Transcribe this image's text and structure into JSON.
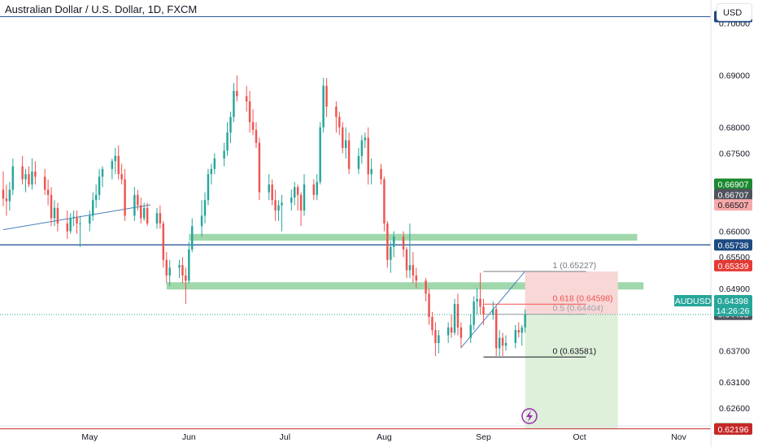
{
  "header": {
    "title": "Australian Dollar / U.S. Dollar, 1D, FXCM",
    "currency_button": "USD"
  },
  "symbol_label": {
    "symbol": "AUDUSD",
    "price": "0.64398",
    "countdown": "14:26:26",
    "color": "#26a69a"
  },
  "chart_data": {
    "type": "candlestick",
    "title": "Australian Dollar / U.S. Dollar, 1D, FXCM",
    "xlim": [
      "2023-04-04",
      "2023-11-10"
    ],
    "ylim": [
      0.6185,
      0.7045
    ],
    "x_ticks": [
      {
        "date": "2023-05-01",
        "label": "May"
      },
      {
        "date": "2023-06-01",
        "label": "Jun"
      },
      {
        "date": "2023-07-01",
        "label": "Jul"
      },
      {
        "date": "2023-08-01",
        "label": "Aug"
      },
      {
        "date": "2023-09-01",
        "label": "Sep"
      },
      {
        "date": "2023-10-01",
        "label": "Oct"
      },
      {
        "date": "2023-11-01",
        "label": "Nov"
      }
    ],
    "y_ticks": [
      "0.69000",
      "0.68000",
      "0.67500",
      "0.66000",
      "0.64900",
      "0.63700",
      "0.63100",
      "0.62600"
    ],
    "colors": {
      "up": "#26a69a",
      "down": "#ef5350"
    },
    "candles": [
      {
        "date": "2023-04-04",
        "o": 0.668,
        "h": 0.6715,
        "l": 0.6648,
        "c": 0.6663
      },
      {
        "date": "2023-04-05",
        "o": 0.6663,
        "h": 0.669,
        "l": 0.663,
        "c": 0.6658
      },
      {
        "date": "2023-04-06",
        "o": 0.6658,
        "h": 0.6695,
        "l": 0.664,
        "c": 0.668
      },
      {
        "date": "2023-04-07",
        "o": 0.668,
        "h": 0.674,
        "l": 0.667,
        "c": 0.6725
      },
      {
        "date": "2023-04-10",
        "o": 0.6725,
        "h": 0.6745,
        "l": 0.669,
        "c": 0.67
      },
      {
        "date": "2023-04-11",
        "o": 0.67,
        "h": 0.672,
        "l": 0.6675,
        "c": 0.671
      },
      {
        "date": "2023-04-12",
        "o": 0.671,
        "h": 0.6725,
        "l": 0.6685,
        "c": 0.669
      },
      {
        "date": "2023-04-13",
        "o": 0.669,
        "h": 0.674,
        "l": 0.668,
        "c": 0.6715
      },
      {
        "date": "2023-04-14",
        "o": 0.6715,
        "h": 0.6735,
        "l": 0.669,
        "c": 0.6705
      },
      {
        "date": "2023-04-17",
        "o": 0.6705,
        "h": 0.672,
        "l": 0.667,
        "c": 0.668
      },
      {
        "date": "2023-04-18",
        "o": 0.668,
        "h": 0.67,
        "l": 0.665,
        "c": 0.667
      },
      {
        "date": "2023-04-19",
        "o": 0.667,
        "h": 0.6685,
        "l": 0.661,
        "c": 0.6625
      },
      {
        "date": "2023-04-20",
        "o": 0.6625,
        "h": 0.666,
        "l": 0.661,
        "c": 0.6645
      },
      {
        "date": "2023-04-21",
        "o": 0.6645,
        "h": 0.6655,
        "l": 0.66,
        "c": 0.6615
      },
      {
        "date": "2023-04-24",
        "o": 0.6615,
        "h": 0.664,
        "l": 0.6585,
        "c": 0.66
      },
      {
        "date": "2023-04-25",
        "o": 0.66,
        "h": 0.6635,
        "l": 0.6595,
        "c": 0.6625
      },
      {
        "date": "2023-04-26",
        "o": 0.6625,
        "h": 0.664,
        "l": 0.661,
        "c": 0.6628
      },
      {
        "date": "2023-04-27",
        "o": 0.6628,
        "h": 0.664,
        "l": 0.6595,
        "c": 0.6615
      },
      {
        "date": "2023-04-28",
        "o": 0.6615,
        "h": 0.663,
        "l": 0.657,
        "c": 0.6615
      },
      {
        "date": "2023-05-01",
        "o": 0.6615,
        "h": 0.664,
        "l": 0.66,
        "c": 0.663
      },
      {
        "date": "2023-05-02",
        "o": 0.663,
        "h": 0.6675,
        "l": 0.662,
        "c": 0.666
      },
      {
        "date": "2023-05-03",
        "o": 0.666,
        "h": 0.669,
        "l": 0.6645,
        "c": 0.667
      },
      {
        "date": "2023-05-04",
        "o": 0.667,
        "h": 0.672,
        "l": 0.666,
        "c": 0.6705
      },
      {
        "date": "2023-05-05",
        "o": 0.6705,
        "h": 0.6725,
        "l": 0.6685,
        "c": 0.672
      },
      {
        "date": "2023-05-08",
        "o": 0.672,
        "h": 0.674,
        "l": 0.67,
        "c": 0.6735
      },
      {
        "date": "2023-05-09",
        "o": 0.6735,
        "h": 0.676,
        "l": 0.671,
        "c": 0.6745
      },
      {
        "date": "2023-05-10",
        "o": 0.6745,
        "h": 0.6765,
        "l": 0.67,
        "c": 0.671
      },
      {
        "date": "2023-05-11",
        "o": 0.671,
        "h": 0.673,
        "l": 0.669,
        "c": 0.67
      },
      {
        "date": "2023-05-12",
        "o": 0.67,
        "h": 0.672,
        "l": 0.662,
        "c": 0.663
      },
      {
        "date": "2023-05-15",
        "o": 0.663,
        "h": 0.6685,
        "l": 0.662,
        "c": 0.667
      },
      {
        "date": "2023-05-16",
        "o": 0.667,
        "h": 0.668,
        "l": 0.664,
        "c": 0.665
      },
      {
        "date": "2023-05-17",
        "o": 0.665,
        "h": 0.6665,
        "l": 0.6615,
        "c": 0.6625
      },
      {
        "date": "2023-05-18",
        "o": 0.6625,
        "h": 0.6655,
        "l": 0.662,
        "c": 0.6645
      },
      {
        "date": "2023-05-19",
        "o": 0.6645,
        "h": 0.6655,
        "l": 0.661,
        "c": 0.6615
      },
      {
        "date": "2023-05-22",
        "o": 0.6615,
        "h": 0.6645,
        "l": 0.6605,
        "c": 0.6635
      },
      {
        "date": "2023-05-23",
        "o": 0.6635,
        "h": 0.665,
        "l": 0.6605,
        "c": 0.6615
      },
      {
        "date": "2023-05-24",
        "o": 0.6615,
        "h": 0.662,
        "l": 0.653,
        "c": 0.6545
      },
      {
        "date": "2023-05-25",
        "o": 0.6545,
        "h": 0.656,
        "l": 0.65,
        "c": 0.6515
      },
      {
        "date": "2023-05-26",
        "o": 0.6515,
        "h": 0.6545,
        "l": 0.6495,
        "c": 0.653
      },
      {
        "date": "2023-05-29",
        "o": 0.653,
        "h": 0.6545,
        "l": 0.651,
        "c": 0.6535
      },
      {
        "date": "2023-05-30",
        "o": 0.6535,
        "h": 0.655,
        "l": 0.65,
        "c": 0.6515
      },
      {
        "date": "2023-05-31",
        "o": 0.6515,
        "h": 0.653,
        "l": 0.646,
        "c": 0.6505
      },
      {
        "date": "2023-06-01",
        "o": 0.6505,
        "h": 0.658,
        "l": 0.65,
        "c": 0.6565
      },
      {
        "date": "2023-06-02",
        "o": 0.6565,
        "h": 0.6625,
        "l": 0.656,
        "c": 0.661
      },
      {
        "date": "2023-06-05",
        "o": 0.661,
        "h": 0.666,
        "l": 0.659,
        "c": 0.663
      },
      {
        "date": "2023-06-06",
        "o": 0.663,
        "h": 0.6675,
        "l": 0.6615,
        "c": 0.666
      },
      {
        "date": "2023-06-07",
        "o": 0.666,
        "h": 0.672,
        "l": 0.665,
        "c": 0.671
      },
      {
        "date": "2023-06-08",
        "o": 0.671,
        "h": 0.673,
        "l": 0.669,
        "c": 0.672
      },
      {
        "date": "2023-06-09",
        "o": 0.672,
        "h": 0.675,
        "l": 0.671,
        "c": 0.674
      },
      {
        "date": "2023-06-12",
        "o": 0.674,
        "h": 0.677,
        "l": 0.6725,
        "c": 0.6755
      },
      {
        "date": "2023-06-13",
        "o": 0.6755,
        "h": 0.681,
        "l": 0.6745,
        "c": 0.679
      },
      {
        "date": "2023-06-14",
        "o": 0.679,
        "h": 0.683,
        "l": 0.677,
        "c": 0.682
      },
      {
        "date": "2023-06-15",
        "o": 0.682,
        "h": 0.6885,
        "l": 0.681,
        "c": 0.687
      },
      {
        "date": "2023-06-16",
        "o": 0.687,
        "h": 0.69,
        "l": 0.685,
        "c": 0.686
      },
      {
        "date": "2023-06-19",
        "o": 0.686,
        "h": 0.688,
        "l": 0.683,
        "c": 0.685
      },
      {
        "date": "2023-06-20",
        "o": 0.685,
        "h": 0.687,
        "l": 0.679,
        "c": 0.681
      },
      {
        "date": "2023-06-21",
        "o": 0.681,
        "h": 0.6835,
        "l": 0.6785,
        "c": 0.6795
      },
      {
        "date": "2023-06-22",
        "o": 0.6795,
        "h": 0.681,
        "l": 0.676,
        "c": 0.677
      },
      {
        "date": "2023-06-23",
        "o": 0.677,
        "h": 0.678,
        "l": 0.666,
        "c": 0.6675
      },
      {
        "date": "2023-06-26",
        "o": 0.6675,
        "h": 0.671,
        "l": 0.666,
        "c": 0.669
      },
      {
        "date": "2023-06-27",
        "o": 0.669,
        "h": 0.67,
        "l": 0.665,
        "c": 0.666
      },
      {
        "date": "2023-06-28",
        "o": 0.666,
        "h": 0.668,
        "l": 0.662,
        "c": 0.664
      },
      {
        "date": "2023-06-29",
        "o": 0.664,
        "h": 0.666,
        "l": 0.662,
        "c": 0.665
      },
      {
        "date": "2023-06-30",
        "o": 0.665,
        "h": 0.667,
        "l": 0.66,
        "c": 0.6655
      },
      {
        "date": "2023-07-03",
        "o": 0.6655,
        "h": 0.668,
        "l": 0.664,
        "c": 0.6665
      },
      {
        "date": "2023-07-04",
        "o": 0.6665,
        "h": 0.6695,
        "l": 0.665,
        "c": 0.6685
      },
      {
        "date": "2023-07-05",
        "o": 0.6685,
        "h": 0.669,
        "l": 0.664,
        "c": 0.667
      },
      {
        "date": "2023-07-06",
        "o": 0.667,
        "h": 0.6675,
        "l": 0.661,
        "c": 0.664
      },
      {
        "date": "2023-07-07",
        "o": 0.664,
        "h": 0.671,
        "l": 0.663,
        "c": 0.669
      },
      {
        "date": "2023-07-10",
        "o": 0.669,
        "h": 0.67,
        "l": 0.666,
        "c": 0.667
      },
      {
        "date": "2023-07-11",
        "o": 0.667,
        "h": 0.671,
        "l": 0.666,
        "c": 0.6695
      },
      {
        "date": "2023-07-12",
        "o": 0.6695,
        "h": 0.681,
        "l": 0.669,
        "c": 0.68
      },
      {
        "date": "2023-07-13",
        "o": 0.68,
        "h": 0.6895,
        "l": 0.679,
        "c": 0.688
      },
      {
        "date": "2023-07-14",
        "o": 0.688,
        "h": 0.6895,
        "l": 0.682,
        "c": 0.684
      },
      {
        "date": "2023-07-17",
        "o": 0.684,
        "h": 0.685,
        "l": 0.679,
        "c": 0.682
      },
      {
        "date": "2023-07-18",
        "o": 0.682,
        "h": 0.683,
        "l": 0.6785,
        "c": 0.68
      },
      {
        "date": "2023-07-19",
        "o": 0.68,
        "h": 0.681,
        "l": 0.675,
        "c": 0.676
      },
      {
        "date": "2023-07-20",
        "o": 0.676,
        "h": 0.68,
        "l": 0.674,
        "c": 0.6775
      },
      {
        "date": "2023-07-21",
        "o": 0.6775,
        "h": 0.679,
        "l": 0.671,
        "c": 0.672
      },
      {
        "date": "2023-07-24",
        "o": 0.672,
        "h": 0.676,
        "l": 0.671,
        "c": 0.6745
      },
      {
        "date": "2023-07-25",
        "o": 0.6745,
        "h": 0.6785,
        "l": 0.673,
        "c": 0.6775
      },
      {
        "date": "2023-07-26",
        "o": 0.6775,
        "h": 0.679,
        "l": 0.676,
        "c": 0.678
      },
      {
        "date": "2023-07-27",
        "o": 0.678,
        "h": 0.68,
        "l": 0.669,
        "c": 0.671
      },
      {
        "date": "2023-07-28",
        "o": 0.671,
        "h": 0.674,
        "l": 0.669,
        "c": 0.672
      },
      {
        "date": "2023-07-31",
        "o": 0.672,
        "h": 0.673,
        "l": 0.669,
        "c": 0.67
      },
      {
        "date": "2023-08-01",
        "o": 0.67,
        "h": 0.6705,
        "l": 0.66,
        "c": 0.6615
      },
      {
        "date": "2023-08-02",
        "o": 0.6615,
        "h": 0.662,
        "l": 0.653,
        "c": 0.6545
      },
      {
        "date": "2023-08-03",
        "o": 0.6545,
        "h": 0.658,
        "l": 0.652,
        "c": 0.657
      },
      {
        "date": "2023-08-04",
        "o": 0.657,
        "h": 0.66,
        "l": 0.655,
        "c": 0.659
      },
      {
        "date": "2023-08-07",
        "o": 0.659,
        "h": 0.66,
        "l": 0.655,
        "c": 0.6565
      },
      {
        "date": "2023-08-08",
        "o": 0.6565,
        "h": 0.657,
        "l": 0.651,
        "c": 0.6525
      },
      {
        "date": "2023-08-09",
        "o": 0.6525,
        "h": 0.6615,
        "l": 0.651,
        "c": 0.6535
      },
      {
        "date": "2023-08-10",
        "o": 0.6535,
        "h": 0.656,
        "l": 0.65,
        "c": 0.6515
      },
      {
        "date": "2023-08-11",
        "o": 0.6515,
        "h": 0.653,
        "l": 0.649,
        "c": 0.6505
      },
      {
        "date": "2023-08-14",
        "o": 0.6505,
        "h": 0.651,
        "l": 0.6465,
        "c": 0.648
      },
      {
        "date": "2023-08-15",
        "o": 0.648,
        "h": 0.649,
        "l": 0.642,
        "c": 0.6435
      },
      {
        "date": "2023-08-16",
        "o": 0.6435,
        "h": 0.6445,
        "l": 0.64,
        "c": 0.641
      },
      {
        "date": "2023-08-17",
        "o": 0.641,
        "h": 0.6425,
        "l": 0.636,
        "c": 0.6385
      },
      {
        "date": "2023-08-18",
        "o": 0.6385,
        "h": 0.641,
        "l": 0.6365,
        "c": 0.64
      },
      {
        "date": "2023-08-21",
        "o": 0.64,
        "h": 0.6425,
        "l": 0.6385,
        "c": 0.6415
      },
      {
        "date": "2023-08-22",
        "o": 0.6415,
        "h": 0.644,
        "l": 0.6395,
        "c": 0.6405
      },
      {
        "date": "2023-08-23",
        "o": 0.6405,
        "h": 0.647,
        "l": 0.64,
        "c": 0.646
      },
      {
        "date": "2023-08-24",
        "o": 0.646,
        "h": 0.648,
        "l": 0.64,
        "c": 0.6415
      },
      {
        "date": "2023-08-25",
        "o": 0.6415,
        "h": 0.6425,
        "l": 0.6375,
        "c": 0.6395
      },
      {
        "date": "2023-08-28",
        "o": 0.6395,
        "h": 0.644,
        "l": 0.6385,
        "c": 0.642
      },
      {
        "date": "2023-08-29",
        "o": 0.642,
        "h": 0.6475,
        "l": 0.641,
        "c": 0.6465
      },
      {
        "date": "2023-08-30",
        "o": 0.6465,
        "h": 0.649,
        "l": 0.644,
        "c": 0.647
      },
      {
        "date": "2023-08-31",
        "o": 0.647,
        "h": 0.652,
        "l": 0.644,
        "c": 0.6455
      },
      {
        "date": "2023-09-01",
        "o": 0.6455,
        "h": 0.647,
        "l": 0.642,
        "c": 0.644
      },
      {
        "date": "2023-09-04",
        "o": 0.644,
        "h": 0.6465,
        "l": 0.643,
        "c": 0.645
      },
      {
        "date": "2023-09-05",
        "o": 0.645,
        "h": 0.6455,
        "l": 0.636,
        "c": 0.6375
      },
      {
        "date": "2023-09-06",
        "o": 0.6375,
        "h": 0.641,
        "l": 0.636,
        "c": 0.6395
      },
      {
        "date": "2023-09-07",
        "o": 0.6395,
        "h": 0.6405,
        "l": 0.636,
        "c": 0.638
      },
      {
        "date": "2023-09-08",
        "o": 0.638,
        "h": 0.64,
        "l": 0.637,
        "c": 0.6385
      },
      {
        "date": "2023-09-11",
        "o": 0.6385,
        "h": 0.642,
        "l": 0.6375,
        "c": 0.641
      },
      {
        "date": "2023-09-12",
        "o": 0.641,
        "h": 0.6425,
        "l": 0.6395,
        "c": 0.6405
      },
      {
        "date": "2023-09-13",
        "o": 0.6405,
        "h": 0.642,
        "l": 0.638,
        "c": 0.6415
      },
      {
        "date": "2023-09-14",
        "o": 0.6415,
        "h": 0.645,
        "l": 0.6405,
        "c": 0.644
      }
    ],
    "horizontal_lines": [
      {
        "price": 0.7013,
        "color": "#2a5a9a",
        "width": 1
      },
      {
        "price": 0.65738,
        "color": "#2a5a9a",
        "width": 1.4
      },
      {
        "price": 0.622,
        "color": "#c62828",
        "width": 1
      },
      {
        "price": 0.64398,
        "color": "#26a69a",
        "width": 1,
        "dotted": true
      }
    ],
    "zones": [
      {
        "from_date": "2023-06-01",
        "to_date": "2023-10-19",
        "top": 0.6595,
        "bottom": 0.6582,
        "color": "#8fd19e"
      },
      {
        "from_date": "2023-05-25",
        "to_date": "2023-10-21",
        "top": 0.6502,
        "bottom": 0.6488,
        "color": "#8fd19e"
      }
    ],
    "trendlines": [
      {
        "from": {
          "date": "2023-04-04",
          "price": 0.6603
        },
        "to": {
          "date": "2023-05-20",
          "price": 0.6651
        },
        "color": "#4a7fc1"
      },
      {
        "from": {
          "date": "2023-08-25",
          "price": 0.6376
        },
        "to": {
          "date": "2023-09-14",
          "price": 0.6523
        },
        "color": "#4a7fc1"
      }
    ],
    "fibonacci": {
      "from_date": "2023-09-01",
      "to_date": "2023-10-03",
      "levels": [
        {
          "label": "1 (0.65227)",
          "price": 0.65227,
          "color": "#787b86"
        },
        {
          "label": "0.618 (0.64598)",
          "price": 0.64598,
          "color": "#ef5350"
        },
        {
          "label": "0.5 (0.64404)",
          "price": 0.64404,
          "color": "#a0a3aa"
        },
        {
          "label": "0 (0.63581)",
          "price": 0.63581,
          "color": "#131722"
        }
      ]
    },
    "position": {
      "from_date": "2023-09-14",
      "to_date": "2023-10-13",
      "stop": 0.65227,
      "entry": 0.64398,
      "target": 0.622,
      "risk_color": "#f8d7d7",
      "reward_color": "#dff0da"
    },
    "price_labels": [
      {
        "text": "0.70130",
        "price": 0.7013,
        "bg": "#1e4a82"
      },
      {
        "text": "0.66907",
        "price": 0.66907,
        "bg": "#1b8a2f"
      },
      {
        "text": "0.66707",
        "price": 0.66707,
        "bg": "#50535e"
      },
      {
        "text": "0.66507",
        "price": 0.66507,
        "bg": "#f7a9a9",
        "fg": "#131722"
      },
      {
        "text": "0.65738",
        "price": 0.65738,
        "bg": "#1e4a82"
      },
      {
        "text": "0.65339",
        "price": 0.65339,
        "bg": "#e53935"
      },
      {
        "text": "0.64403",
        "price": 0.64403,
        "bg": "#50535e"
      },
      {
        "text": "0.62200",
        "price": 0.622,
        "bg": "#1b8a2f"
      },
      {
        "text": "0.62196",
        "price": 0.62196,
        "bg": "#c62828"
      }
    ],
    "partial_axis_texts": [
      {
        "text": "0.70000",
        "price": 0.70005
      },
      {
        "text": "0.65500",
        "price": 0.6551
      }
    ]
  }
}
